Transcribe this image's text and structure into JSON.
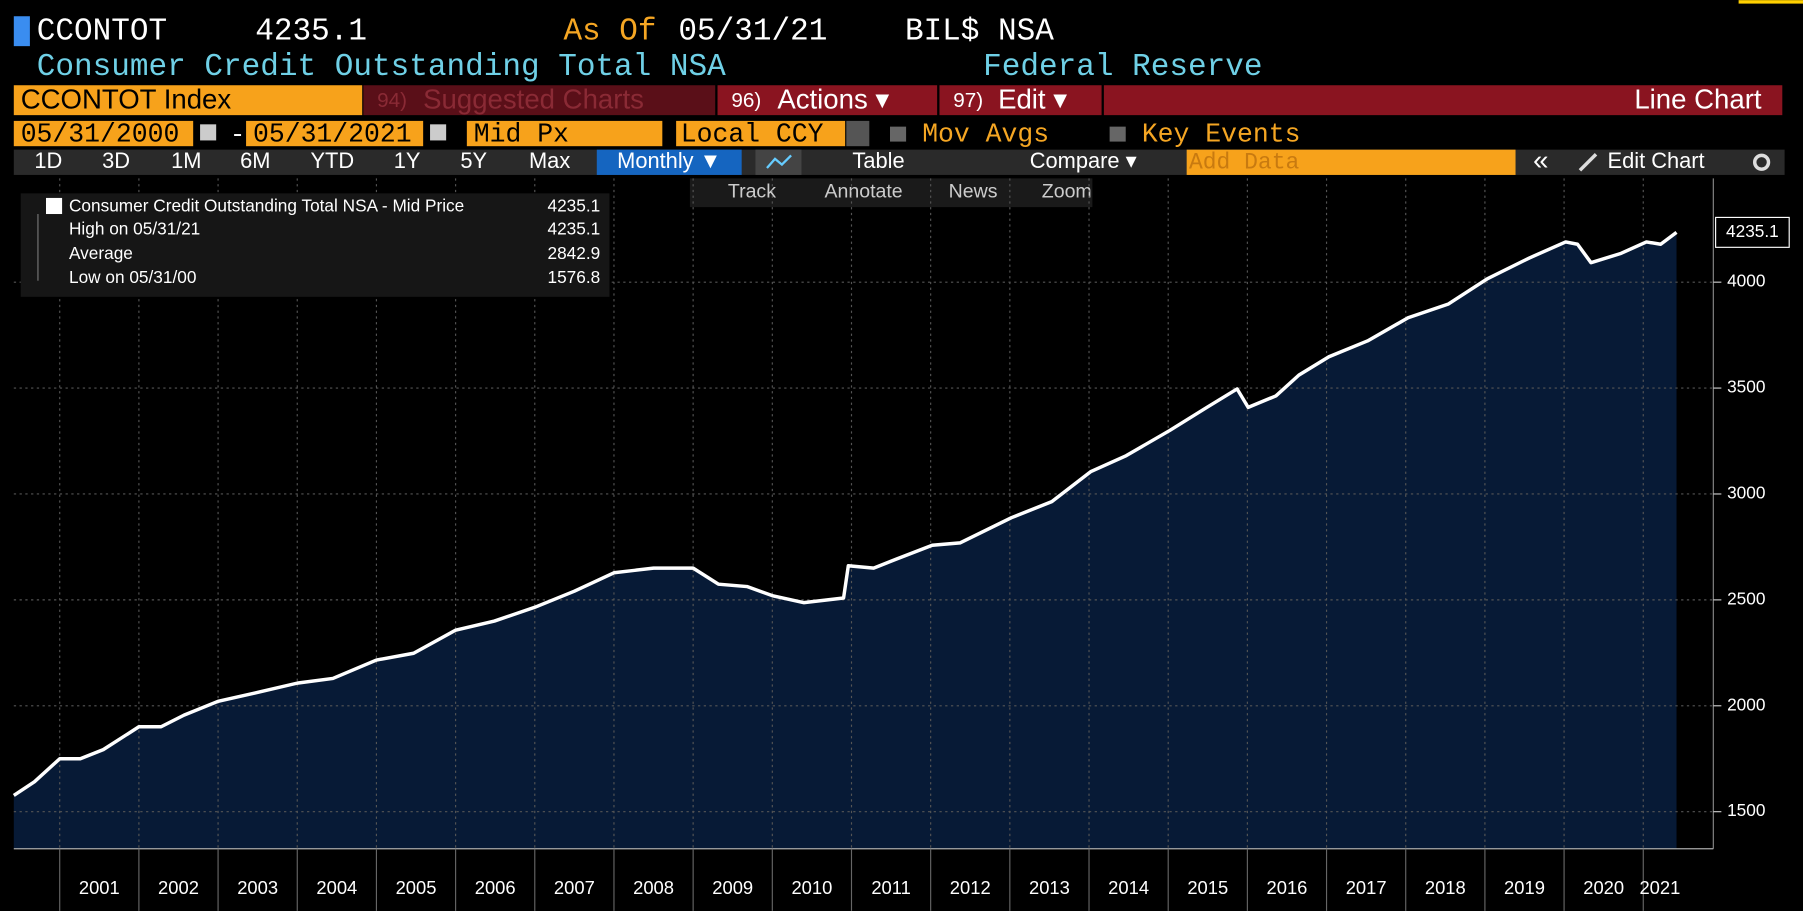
{
  "header": {
    "ticker": "CCONTOT",
    "last": 4235.1,
    "as_of_label": "As Of",
    "as_of": "05/31/21",
    "units": "BIL$ NSA",
    "name": "Consumer Credit Outstanding Total NSA",
    "source": "Federal Reserve"
  },
  "toolbar": {
    "security": "CCONTOT Index",
    "suggested_num": "94)",
    "suggested": "Suggested Charts",
    "actions_num": "96)",
    "actions": "Actions ▾",
    "edit_num": "97)",
    "edit": "Edit ▾",
    "chart_type": "Line Chart"
  },
  "range": {
    "start": "05/31/2000",
    "sep": "-",
    "end": "05/31/2021",
    "field": "Mid Px",
    "currency": "Local CCY",
    "mov_avgs": "Mov Avgs",
    "key_events": "Key Events"
  },
  "periods": [
    "1D",
    "3D",
    "1M",
    "6M",
    "YTD",
    "1Y",
    "5Y",
    "Max"
  ],
  "frequency": "Monthly ▼",
  "tools": {
    "table": "Table",
    "compare": "Compare ▾",
    "add_data": "Add Data",
    "collapse": "«",
    "edit_chart": "Edit Chart"
  },
  "chart_tools": [
    "Track",
    "Annotate",
    "News",
    "Zoom"
  ],
  "chart_data": {
    "type": "line",
    "x": [
      2000.42,
      2000.68,
      2001.0,
      2001.26,
      2001.55,
      2002.0,
      2002.28,
      2002.57,
      2003.0,
      2003.51,
      2004.0,
      2004.45,
      2005.0,
      2005.47,
      2006.0,
      2006.49,
      2007.0,
      2007.5,
      2008.0,
      2008.5,
      2009.0,
      2009.32,
      2009.68,
      2010.0,
      2010.4,
      2010.9,
      2010.96,
      2011.28,
      2011.57,
      2012.02,
      2012.37,
      2013.02,
      2013.53,
      2014.02,
      2014.47,
      2015.02,
      2015.49,
      2015.87,
      2016.01,
      2016.36,
      2016.65,
      2017.03,
      2017.52,
      2018.03,
      2018.54,
      2019.03,
      2019.56,
      2020.02,
      2020.17,
      2020.34,
      2020.72,
      2021.04,
      2021.22,
      2021.42
    ],
    "series": [
      {
        "name": "Consumer Credit Outstanding Total NSA - Mid Price",
        "color": "#ffffff",
        "values": [
          1576.8,
          1641,
          1750,
          1750,
          1793,
          1901,
          1901,
          1956,
          2021,
          2064,
          2107,
          2129,
          2216,
          2248,
          2357,
          2400,
          2465,
          2541,
          2628,
          2650,
          2650,
          2574,
          2563,
          2520,
          2487,
          2509,
          2661,
          2650,
          2693,
          2758,
          2769,
          2888,
          2964,
          3105,
          3181,
          3300,
          3409,
          3496,
          3409,
          3463,
          3561,
          3648,
          3723,
          3832,
          3897,
          4016,
          4114,
          4190,
          4179,
          4092,
          4136,
          4190,
          4179,
          4235.1
        ]
      }
    ],
    "fill": "#071a36",
    "xlim": [
      2000.42,
      2021.42
    ],
    "xticks": [
      2001,
      2002,
      2003,
      2004,
      2005,
      2006,
      2007,
      2008,
      2009,
      2010,
      2011,
      2012,
      2013,
      2014,
      2015,
      2016,
      2017,
      2018,
      2019,
      2020,
      2021
    ],
    "ylim": [
      1325,
      4490
    ],
    "yticks": [
      1500,
      2000,
      2500,
      3000,
      3500,
      4000
    ],
    "grid": true,
    "legend_stats": [
      {
        "label": "High on 05/31/21",
        "value": 4235.1
      },
      {
        "label": "Average",
        "value": 2842.9
      },
      {
        "label": "Low on 05/31/00",
        "value": 1576.8
      }
    ]
  }
}
